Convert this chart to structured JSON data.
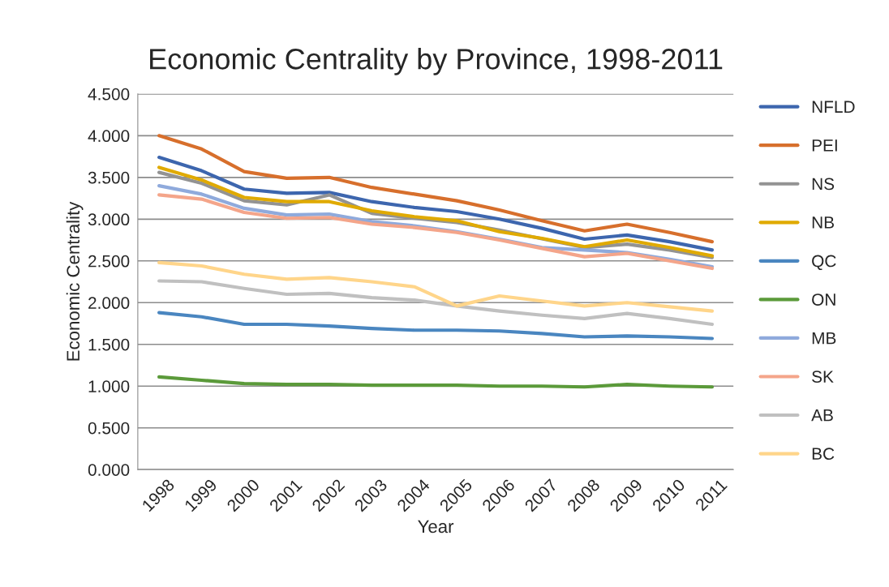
{
  "chart_data": {
    "type": "line",
    "title": "Economic Centrality by Province, 1998-2011",
    "xlabel": "Year",
    "ylabel": "Economic Centrality",
    "categories": [
      "1998",
      "1999",
      "2000",
      "2001",
      "2002",
      "2003",
      "2004",
      "2005",
      "2006",
      "2007",
      "2008",
      "2009",
      "2010",
      "2011"
    ],
    "series": [
      {
        "name": "NFLD",
        "color": "#3d66ae",
        "values": [
          3.74,
          3.58,
          3.36,
          3.31,
          3.32,
          3.21,
          3.14,
          3.09,
          3.0,
          2.89,
          2.76,
          2.81,
          2.73,
          2.63
        ]
      },
      {
        "name": "PEI",
        "color": "#d76f2c",
        "values": [
          4.0,
          3.84,
          3.57,
          3.49,
          3.5,
          3.38,
          3.3,
          3.22,
          3.11,
          2.98,
          2.86,
          2.94,
          2.84,
          2.73
        ]
      },
      {
        "name": "NS",
        "color": "#939393",
        "values": [
          3.56,
          3.43,
          3.22,
          3.17,
          3.29,
          3.07,
          3.01,
          2.96,
          2.87,
          null,
          2.66,
          2.7,
          2.63,
          2.54
        ]
      },
      {
        "name": "NB",
        "color": "#e0aa00",
        "values": [
          3.62,
          3.47,
          3.26,
          3.21,
          3.21,
          3.1,
          3.03,
          2.98,
          2.85,
          2.77,
          2.67,
          2.75,
          2.66,
          2.56
        ]
      },
      {
        "name": "QC",
        "color": "#4a86c0",
        "values": [
          1.88,
          1.83,
          1.74,
          1.74,
          1.72,
          1.69,
          1.67,
          1.67,
          1.66,
          1.63,
          1.59,
          1.6,
          1.59,
          1.57
        ]
      },
      {
        "name": "ON",
        "color": "#5b9a3a",
        "values": [
          1.11,
          1.07,
          1.03,
          1.02,
          1.02,
          1.01,
          1.01,
          1.01,
          1.0,
          1.0,
          0.99,
          1.02,
          1.0,
          0.99
        ]
      },
      {
        "name": "MB",
        "color": "#8faadc",
        "values": [
          3.4,
          3.3,
          3.13,
          3.05,
          3.06,
          2.97,
          2.92,
          2.85,
          2.76,
          2.66,
          null,
          2.6,
          2.52,
          2.43
        ]
      },
      {
        "name": "SK",
        "color": "#f4a58a",
        "values": [
          3.29,
          3.24,
          3.08,
          3.01,
          3.02,
          2.94,
          2.9,
          2.84,
          2.75,
          2.65,
          2.55,
          2.59,
          2.5,
          2.41
        ]
      },
      {
        "name": "AB",
        "color": "#c0c0c0",
        "values": [
          2.26,
          2.25,
          2.17,
          2.1,
          2.11,
          2.06,
          2.03,
          1.96,
          1.9,
          1.85,
          1.81,
          1.87,
          1.81,
          1.74
        ]
      },
      {
        "name": "BC",
        "color": "#ffd58a",
        "values": [
          2.48,
          2.44,
          2.34,
          2.28,
          2.3,
          2.25,
          2.19,
          1.96,
          2.08,
          2.02,
          1.96,
          2.0,
          1.95,
          1.9
        ]
      }
    ],
    "ylim": [
      0,
      4.5
    ],
    "yticks": [
      {
        "value": 0,
        "label": "0.000"
      },
      {
        "value": 0.5,
        "label": "0.500"
      },
      {
        "value": 1,
        "label": "1.000"
      },
      {
        "value": 1.5,
        "label": "1.500"
      },
      {
        "value": 2,
        "label": "2.000"
      },
      {
        "value": 2.5,
        "label": "2.500"
      },
      {
        "value": 3,
        "label": "3.000"
      },
      {
        "value": 3.5,
        "label": "3.500"
      },
      {
        "value": 4,
        "label": "4.000"
      },
      {
        "value": 4.5,
        "label": "4.500"
      }
    ],
    "grid": "y",
    "legend": "right",
    "marker": "none",
    "line_style": "solid"
  }
}
